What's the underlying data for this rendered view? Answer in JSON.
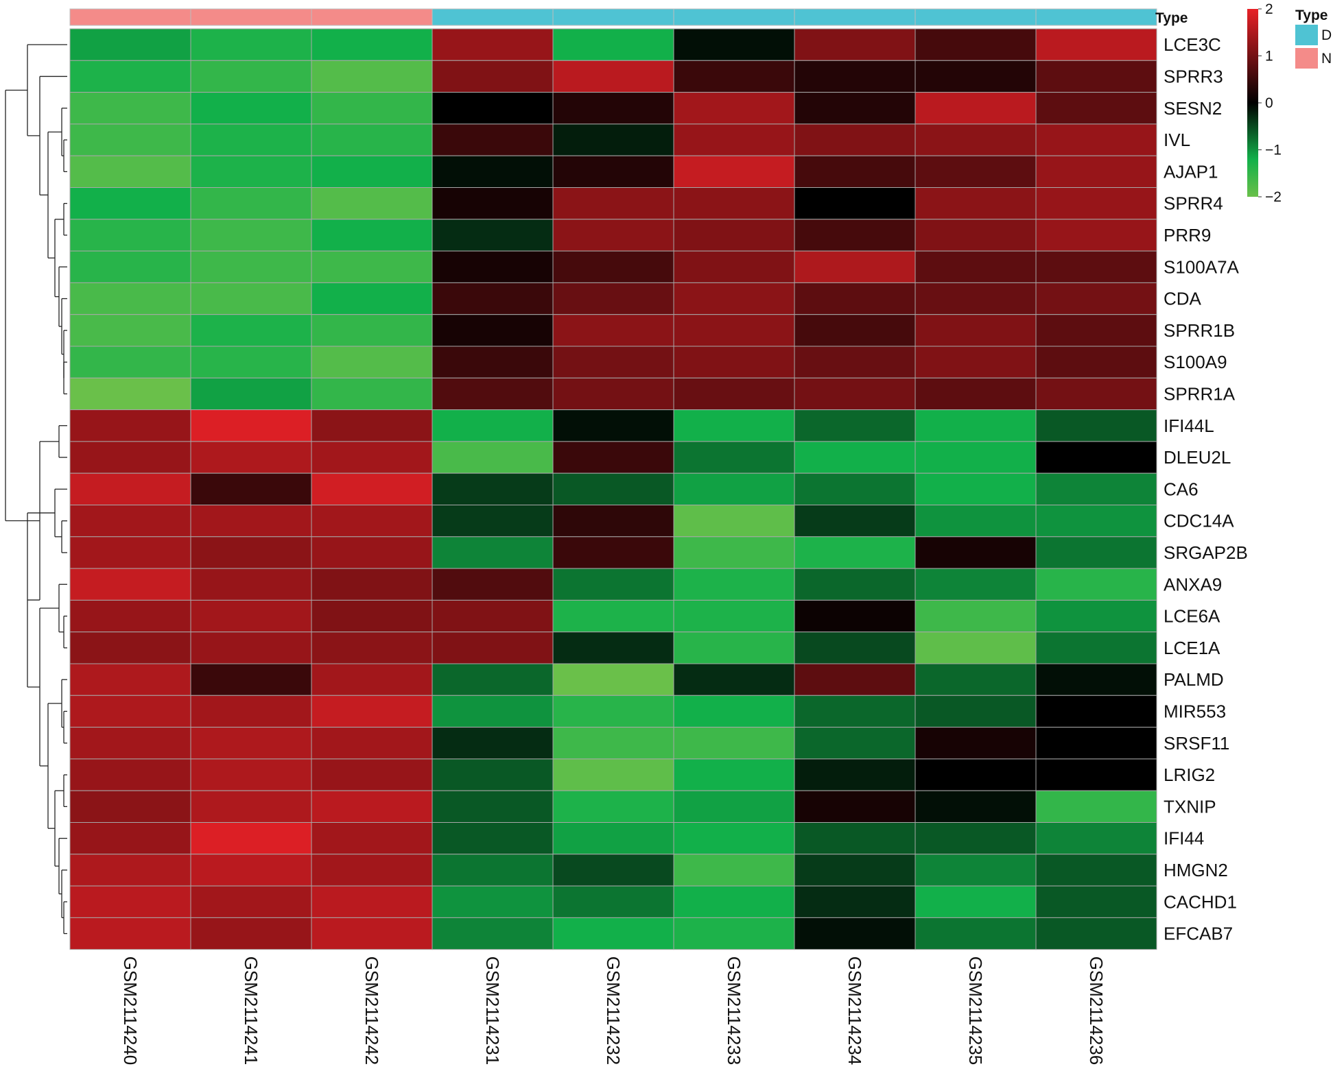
{
  "chart_data": {
    "type": "heatmap",
    "annotation_label": "Type",
    "columns": [
      "GSM2114240",
      "GSM2114241",
      "GSM2114242",
      "GSM2114231",
      "GSM2114232",
      "GSM2114233",
      "GSM2114234",
      "GSM2114235",
      "GSM2114236"
    ],
    "column_types": [
      "N",
      "N",
      "N",
      "D",
      "D",
      "D",
      "D",
      "D",
      "D"
    ],
    "rows": [
      "LCE3C",
      "SPRR3",
      "SESN2",
      "IVL",
      "AJAP1",
      "SPRR4",
      "PRR9",
      "S100A7A",
      "CDA",
      "SPRR1B",
      "S100A9",
      "SPRR1A",
      "IFI44L",
      "DLEU2L",
      "CA6",
      "CDC14A",
      "SRGAP2B",
      "ANXA9",
      "LCE6A",
      "LCE1A",
      "PALMD",
      "MIR553",
      "SRSF11",
      "LRIG2",
      "TXNIP",
      "IFI44",
      "HMGN2",
      "CACHD1",
      "EFCAB7"
    ],
    "values": [
      [
        -1.1,
        -1.3,
        -1.2,
        1.3,
        -1.2,
        -0.1,
        1.1,
        0.6,
        1.6
      ],
      [
        -1.3,
        -1.5,
        -1.8,
        1.1,
        1.6,
        0.5,
        0.3,
        0.3,
        0.8
      ],
      [
        -1.6,
        -1.2,
        -1.5,
        0.0,
        0.3,
        1.4,
        0.3,
        1.6,
        0.8
      ],
      [
        -1.6,
        -1.3,
        -1.4,
        0.5,
        -0.2,
        1.3,
        1.1,
        1.2,
        1.3
      ],
      [
        -1.8,
        -1.3,
        -1.2,
        -0.1,
        0.3,
        1.7,
        0.6,
        0.8,
        1.3
      ],
      [
        -1.2,
        -1.5,
        -1.8,
        0.2,
        1.2,
        1.2,
        0.0,
        1.2,
        1.3
      ],
      [
        -1.4,
        -1.6,
        -1.2,
        -0.3,
        1.2,
        1.1,
        0.6,
        1.1,
        1.3
      ],
      [
        -1.4,
        -1.6,
        -1.6,
        0.2,
        0.6,
        1.1,
        1.5,
        0.8,
        0.8
      ],
      [
        -1.7,
        -1.7,
        -1.2,
        0.5,
        0.9,
        1.2,
        0.8,
        0.9,
        1.0
      ],
      [
        -1.7,
        -1.3,
        -1.5,
        0.2,
        1.2,
        1.2,
        0.6,
        1.1,
        0.8
      ],
      [
        -1.5,
        -1.4,
        -1.8,
        0.5,
        1.0,
        1.1,
        0.9,
        1.1,
        0.8
      ],
      [
        -2.0,
        -1.1,
        -1.5,
        0.7,
        1.0,
        0.9,
        1.0,
        0.8,
        1.0
      ],
      [
        1.3,
        1.9,
        1.2,
        -1.2,
        -0.1,
        -1.2,
        -0.7,
        -1.2,
        -0.6
      ],
      [
        1.3,
        1.5,
        1.4,
        -1.7,
        0.5,
        -0.8,
        -1.2,
        -1.2,
        0.0
      ],
      [
        1.7,
        0.5,
        1.8,
        -0.4,
        -0.6,
        -1.1,
        -0.8,
        -1.2,
        -0.9
      ],
      [
        1.4,
        1.4,
        1.4,
        -0.4,
        0.4,
        -1.9,
        -0.4,
        -1.0,
        -1.0
      ],
      [
        1.4,
        1.2,
        1.3,
        -0.9,
        0.5,
        -1.6,
        -1.3,
        0.2,
        -0.8
      ],
      [
        1.7,
        1.3,
        1.1,
        0.7,
        -0.8,
        -1.3,
        -0.7,
        -0.9,
        -1.4
      ],
      [
        1.3,
        1.4,
        1.1,
        1.1,
        -1.3,
        -1.3,
        0.1,
        -1.6,
        -1.0
      ],
      [
        1.2,
        1.3,
        1.2,
        1.1,
        -0.3,
        -1.4,
        -0.5,
        -1.9,
        -0.8
      ],
      [
        1.5,
        0.5,
        1.4,
        -0.7,
        -2.0,
        -0.3,
        0.8,
        -0.7,
        -0.1
      ],
      [
        1.5,
        1.4,
        1.7,
        -1.0,
        -1.4,
        -1.2,
        -0.7,
        -0.6,
        0.0
      ],
      [
        1.4,
        1.5,
        1.4,
        -0.3,
        -1.6,
        -1.6,
        -0.7,
        0.2,
        0.0
      ],
      [
        1.3,
        1.5,
        1.3,
        -0.6,
        -1.9,
        -1.2,
        -0.2,
        0.0,
        0.0
      ],
      [
        1.2,
        1.5,
        1.6,
        -0.6,
        -1.3,
        -1.1,
        0.2,
        -0.1,
        -1.5
      ],
      [
        1.3,
        1.9,
        1.4,
        -0.6,
        -1.1,
        -1.2,
        -0.6,
        -0.6,
        -0.9
      ],
      [
        1.5,
        1.6,
        1.4,
        -0.8,
        -0.5,
        -1.6,
        -0.4,
        -0.9,
        -0.6
      ],
      [
        1.6,
        1.4,
        1.6,
        -1.0,
        -0.8,
        -1.2,
        -0.3,
        -1.2,
        -0.6
      ],
      [
        1.6,
        1.3,
        1.6,
        -0.9,
        -1.2,
        -1.3,
        -0.1,
        -0.8,
        -0.6
      ]
    ],
    "color_scale": {
      "min": -2,
      "max": 2,
      "ticks": [
        2,
        1,
        0,
        -1,
        -2
      ],
      "low": "#6ac04a",
      "mid_low": "#12b04a",
      "mid": "#000000",
      "high": "#e82127"
    },
    "legend": {
      "title": "Type",
      "entries": [
        {
          "label": "D",
          "color": "#4fc3d3"
        },
        {
          "label": "N",
          "color": "#f48b89"
        }
      ]
    },
    "group_colors": {
      "D": "#4fc3d3",
      "N": "#f48b89"
    },
    "dendrogram": true
  }
}
